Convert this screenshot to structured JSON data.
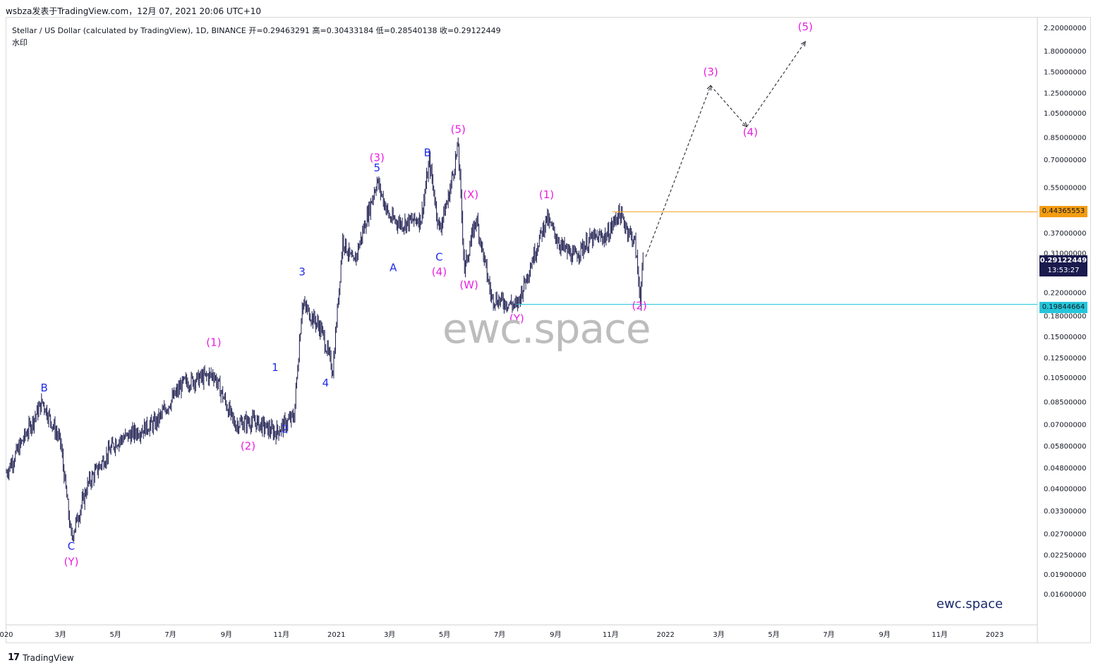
{
  "header": {
    "snapshot_text": "wsbza发表于TradingView.com，12月 07, 2021 20:06 UTC+10",
    "legend_line": "Stellar / US Dollar (calculated by TradingView), 1D, BINANCE  开=0.29463291  高=0.30433184  低=0.28540138  收=0.29122449",
    "legend_sub": "水印"
  },
  "watermark": "ewc.space",
  "corner_label": "ewc.space",
  "footer": {
    "brand": "TradingView",
    "logo": "17"
  },
  "price_tags": {
    "resistance": "0.44365553",
    "support": "0.19844664",
    "last_price": "0.29122449",
    "countdown": "13:53:27"
  },
  "colors": {
    "magenta": "#e91ee0",
    "blue": "#1f2be8",
    "candle": "#1a1a4e",
    "resistance": "#f39c12",
    "support": "#26c6da",
    "last_tag": "#1a1a4e"
  },
  "chart_data": {
    "type": "line",
    "title": "Stellar / US Dollar (calculated by TradingView), 1D, BINANCE",
    "scale": "log",
    "ylim": [
      0.0145,
      2.3
    ],
    "xlim": [
      "2020-01-01",
      "2023-01-31"
    ],
    "y_ticks": [
      "2.20000000",
      "1.80000000",
      "1.50000000",
      "1.25000000",
      "1.05000000",
      "0.85000000",
      "0.70000000",
      "0.55000000",
      "0.37000000",
      "0.31000000",
      "0.22000000",
      "0.18000000",
      "0.15000000",
      "0.12500000",
      "0.10500000",
      "0.08500000",
      "0.07000000",
      "0.05800000",
      "0.04800000",
      "0.04000000",
      "0.03300000",
      "0.02700000",
      "0.02250000",
      "0.01900000",
      "0.01600000"
    ],
    "x_ticks": [
      "020",
      "3月",
      "5月",
      "7月",
      "9月",
      "11月",
      "2021",
      "3月",
      "5月",
      "7月",
      "9月",
      "11月",
      "2022",
      "3月",
      "5月",
      "7月",
      "9月",
      "11月",
      "2023"
    ],
    "series": [
      {
        "name": "",
        "style": "daily-bars",
        "x": [
          "2020-01-01",
          "2020-02-10",
          "2020-03-01",
          "2020-03-13",
          "2020-04-01",
          "2020-05-01",
          "2020-06-15",
          "2020-07-15",
          "2020-08-18",
          "2020-09-10",
          "2020-10-01",
          "2020-10-25",
          "2020-11-15",
          "2020-11-24",
          "2020-12-15",
          "2020-12-28",
          "2021-01-08",
          "2021-01-20",
          "2021-02-15",
          "2021-03-01",
          "2021-03-15",
          "2021-04-05",
          "2021-04-14",
          "2021-04-25",
          "2021-05-05",
          "2021-05-16",
          "2021-05-23",
          "2021-06-05",
          "2021-06-22",
          "2021-07-20",
          "2021-08-10",
          "2021-08-22",
          "2021-09-07",
          "2021-09-21",
          "2021-10-10",
          "2021-10-28",
          "2021-11-10",
          "2021-11-28",
          "2021-12-04",
          "2021-12-07"
        ],
        "y": [
          0.046,
          0.085,
          0.06,
          0.026,
          0.042,
          0.06,
          0.071,
          0.1,
          0.108,
          0.07,
          0.072,
          0.065,
          0.075,
          0.2,
          0.16,
          0.112,
          0.35,
          0.28,
          0.58,
          0.42,
          0.4,
          0.42,
          0.69,
          0.38,
          0.5,
          0.79,
          0.27,
          0.42,
          0.21,
          0.196,
          0.32,
          0.42,
          0.33,
          0.3,
          0.35,
          0.36,
          0.44,
          0.34,
          0.21,
          0.29122449
        ]
      },
      {
        "name": "",
        "style": "projection-dashed",
        "x": [
          "2021-12-10",
          "2022-02-20",
          "2022-04-01",
          "2022-06-05"
        ],
        "y": [
          0.3,
          1.33,
          0.93,
          1.95
        ]
      }
    ],
    "levels": [
      {
        "value": 0.44365553,
        "from": "2021-11-03"
      },
      {
        "value": 0.19844664,
        "from": "2021-07-20"
      }
    ],
    "annotations": [
      {
        "text": "B",
        "color": "blue",
        "x": "2020-02-12",
        "y": 0.093
      },
      {
        "text": "C",
        "color": "blue",
        "x": "2020-03-13",
        "y": 0.0235
      },
      {
        "text": "(Y)",
        "color": "magenta",
        "x": "2020-03-13",
        "y": 0.0205
      },
      {
        "text": "(1)",
        "color": "magenta",
        "x": "2020-08-18",
        "y": 0.138
      },
      {
        "text": "(2)",
        "color": "magenta",
        "x": "2020-09-25",
        "y": 0.056
      },
      {
        "text": "1",
        "color": "blue",
        "x": "2020-10-25",
        "y": 0.111
      },
      {
        "text": "2",
        "color": "blue",
        "x": "2020-11-05",
        "y": 0.065
      },
      {
        "text": "3",
        "color": "blue",
        "x": "2020-11-24",
        "y": 0.255
      },
      {
        "text": "4",
        "color": "blue",
        "x": "2020-12-20",
        "y": 0.097
      },
      {
        "text": "(3)",
        "color": "magenta",
        "x": "2021-02-15",
        "y": 0.69
      },
      {
        "text": "5",
        "color": "blue",
        "x": "2021-02-15",
        "y": 0.63
      },
      {
        "text": "A",
        "color": "blue",
        "x": "2021-03-05",
        "y": 0.265
      },
      {
        "text": "B",
        "color": "blue",
        "x": "2021-04-12",
        "y": 0.72
      },
      {
        "text": "C",
        "color": "blue",
        "x": "2021-04-25",
        "y": 0.29
      },
      {
        "text": "(4)",
        "color": "magenta",
        "x": "2021-04-25",
        "y": 0.255
      },
      {
        "text": "(5)",
        "color": "magenta",
        "x": "2021-05-16",
        "y": 0.88
      },
      {
        "text": "(X)",
        "color": "magenta",
        "x": "2021-05-30",
        "y": 0.5
      },
      {
        "text": "(W)",
        "color": "magenta",
        "x": "2021-05-28",
        "y": 0.228
      },
      {
        "text": "(Y)",
        "color": "magenta",
        "x": "2021-07-20",
        "y": 0.17
      },
      {
        "text": "(1)",
        "color": "magenta",
        "x": "2021-08-22",
        "y": 0.5
      },
      {
        "text": "(2)",
        "color": "magenta",
        "x": "2021-12-03",
        "y": 0.19
      },
      {
        "text": "(3)",
        "color": "magenta",
        "x": "2022-02-20",
        "y": 1.45
      },
      {
        "text": "(4)",
        "color": "magenta",
        "x": "2022-04-05",
        "y": 0.86
      },
      {
        "text": "(5)",
        "color": "magenta",
        "x": "2022-06-05",
        "y": 2.15
      }
    ]
  }
}
